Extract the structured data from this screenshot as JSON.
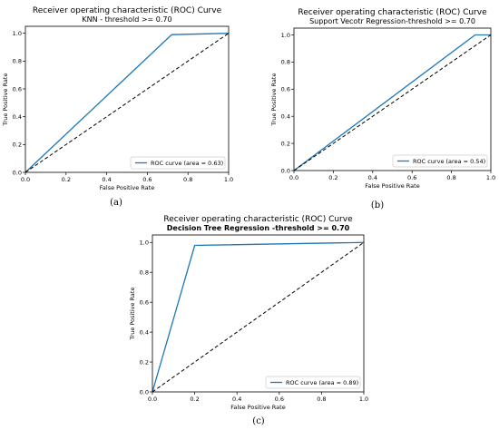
{
  "figure": {
    "captions": [
      "(a)",
      "(b)",
      "(c)"
    ]
  },
  "chart_data": [
    {
      "type": "line",
      "title": "Receiver operating characteristic (ROC) Curve",
      "subtitle": "KNN - threshold >= 0.70",
      "subtitle_bold": false,
      "xlabel": "False Positive Rate",
      "ylabel": "True Positive Rate",
      "xlim": [
        0,
        1
      ],
      "ylim": [
        0,
        1.05
      ],
      "xticks": [
        "0.0",
        "0.2",
        "0.4",
        "0.6",
        "0.8",
        "1.0"
      ],
      "yticks": [
        "0.0",
        "0.2",
        "0.4",
        "0.6",
        "0.8",
        "1.0"
      ],
      "grid": false,
      "legend_position": "lower-right",
      "series": [
        {
          "name": "ROC curve (area = 0.63)",
          "color": "#1f77b4",
          "style": "solid",
          "x": [
            0,
            0.72,
            1.0
          ],
          "y": [
            0,
            0.99,
            1.0
          ]
        },
        {
          "color": "#000000",
          "style": "dashed",
          "x": [
            0,
            1
          ],
          "y": [
            0,
            1
          ]
        }
      ]
    },
    {
      "type": "line",
      "title": "Receiver operating characteristic (ROC) Curve",
      "subtitle": "Support Vecotr Regression-threshold >= 0.70",
      "subtitle_bold": false,
      "xlabel": "False Positive Rate",
      "ylabel": "True Positive Rate",
      "xlim": [
        0,
        1
      ],
      "ylim": [
        0,
        1.05
      ],
      "xticks": [
        "0.0",
        "0.2",
        "0.4",
        "0.6",
        "0.8",
        "1.0"
      ],
      "yticks": [
        "0.0",
        "0.2",
        "0.4",
        "0.6",
        "0.8",
        "1.0"
      ],
      "grid": false,
      "legend_position": "lower-right",
      "series": [
        {
          "name": "ROC curve (area = 0.54)",
          "color": "#1f77b4",
          "style": "solid",
          "x": [
            0,
            0.92,
            1.0
          ],
          "y": [
            0,
            1.0,
            1.0
          ]
        },
        {
          "color": "#000000",
          "style": "dashed",
          "x": [
            0,
            1
          ],
          "y": [
            0,
            1
          ]
        }
      ]
    },
    {
      "type": "line",
      "title": "Receiver operating characteristic (ROC) Curve",
      "subtitle": "Decision Tree Regression -threshold >= 0.70",
      "subtitle_bold": true,
      "xlabel": "False Positive Rate",
      "ylabel": "True Positive Rate",
      "xlim": [
        0,
        1
      ],
      "ylim": [
        0,
        1.05
      ],
      "xticks": [
        "0.0",
        "0.2",
        "0.4",
        "0.6",
        "0.8",
        "1.0"
      ],
      "yticks": [
        "0.0",
        "0.2",
        "0.4",
        "0.6",
        "0.8",
        "1.0"
      ],
      "grid": false,
      "legend_position": "lower-right",
      "series": [
        {
          "name": "ROC curve (area = 0.89)",
          "color": "#1f77b4",
          "style": "solid",
          "x": [
            0,
            0.2,
            1.0
          ],
          "y": [
            0,
            0.98,
            1.0
          ]
        },
        {
          "color": "#000000",
          "style": "dashed",
          "x": [
            0,
            1
          ],
          "y": [
            0,
            1
          ]
        }
      ]
    }
  ]
}
